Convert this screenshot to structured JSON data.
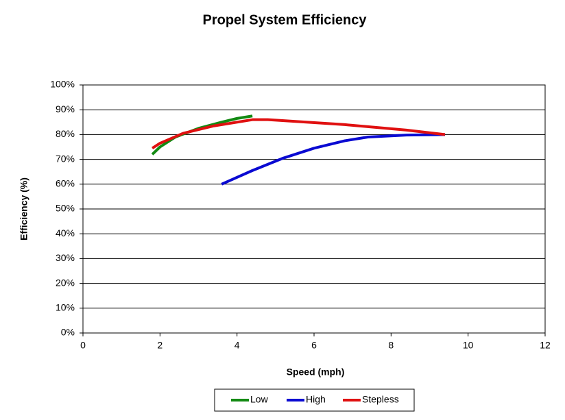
{
  "chart_data": {
    "type": "line",
    "title": "Propel System Efficiency",
    "xlabel": "Speed (mph)",
    "ylabel": "Efficiency (%)",
    "xlim": [
      0,
      12
    ],
    "xticks": [
      0,
      2,
      4,
      6,
      8,
      10,
      12
    ],
    "ylim": [
      0,
      100
    ],
    "yticks": [
      {
        "value": 0,
        "label": "0%"
      },
      {
        "value": 10,
        "label": "10%"
      },
      {
        "value": 20,
        "label": "20%"
      },
      {
        "value": 30,
        "label": "30%"
      },
      {
        "value": 40,
        "label": "40%"
      },
      {
        "value": 50,
        "label": "50%"
      },
      {
        "value": 60,
        "label": "60%"
      },
      {
        "value": 70,
        "label": "70%"
      },
      {
        "value": 80,
        "label": "80%"
      },
      {
        "value": 90,
        "label": "90%"
      },
      {
        "value": 100,
        "label": "100%"
      }
    ],
    "grid": true,
    "legend": "bottom",
    "series": [
      {
        "name": "Low",
        "color": "#138a13",
        "x": [
          1.8,
          2.0,
          2.4,
          3.0,
          3.6,
          4.0,
          4.4
        ],
        "values": [
          72,
          75,
          79,
          82.5,
          85,
          86.5,
          87.5
        ]
      },
      {
        "name": "High",
        "color": "#0a0ad2",
        "x": [
          3.6,
          4.4,
          5.2,
          6.0,
          6.8,
          7.4,
          8.4,
          9.4
        ],
        "values": [
          60,
          65.5,
          70.5,
          74.5,
          77.5,
          79,
          79.8,
          80
        ]
      },
      {
        "name": "Stepless",
        "color": "#e01010",
        "x": [
          1.8,
          2.0,
          2.6,
          3.4,
          4.4,
          4.8,
          6.8,
          8.4,
          9.4
        ],
        "values": [
          74.5,
          76.5,
          80.5,
          83.5,
          86,
          86,
          84,
          81.8,
          80
        ]
      }
    ]
  }
}
